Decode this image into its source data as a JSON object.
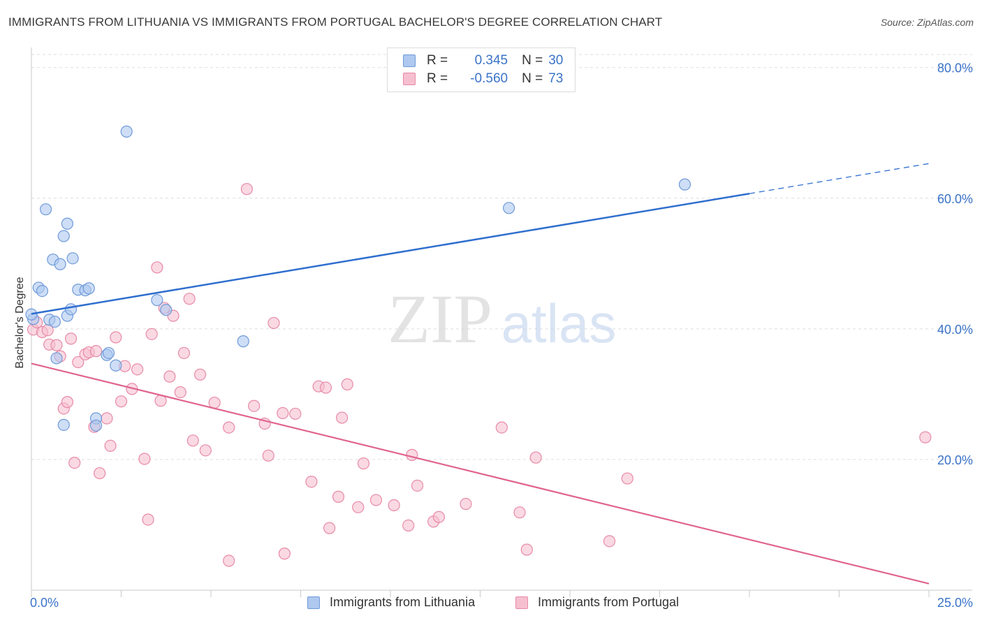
{
  "title": "IMMIGRANTS FROM LITHUANIA VS IMMIGRANTS FROM PORTUGAL BACHELOR'S DEGREE CORRELATION CHART",
  "source": "Source: ZipAtlas.com",
  "watermark": {
    "zip": "ZIP",
    "atlas": "atlas"
  },
  "legend": {
    "rows": [
      {
        "r_label": "R =",
        "r_value": "0.345",
        "n_label": "N =",
        "n_value": "30"
      },
      {
        "r_label": "R =",
        "r_value": "-0.560",
        "n_label": "N =",
        "n_value": "73"
      }
    ]
  },
  "colors": {
    "lithuania_fill": "#aec8f0",
    "lithuania_stroke": "#6f9ad8",
    "lithuania_line": "#2f6fcf",
    "portugal_fill": "#f6bfd0",
    "portugal_stroke": "#e88aa8",
    "portugal_line": "#e0648f",
    "tick_label": "#3a73c8",
    "grid": "#dddddd"
  },
  "chart_data": {
    "type": "scatter",
    "title": "IMMIGRANTS FROM LITHUANIA VS IMMIGRANTS FROM PORTUGAL BACHELOR'S DEGREE CORRELATION CHART",
    "xlabel": "",
    "ylabel": "Bachelor's Degree",
    "xlim": [
      0,
      25
    ],
    "ylim": [
      0,
      82
    ],
    "x_tick_labels": [
      "0.0%",
      "25.0%"
    ],
    "y_ticks": [
      20,
      40,
      60,
      80
    ],
    "y_tick_labels": [
      "20.0%",
      "40.0%",
      "60.0%",
      "80.0%"
    ],
    "grid": true,
    "legend_position": "bottom",
    "series": [
      {
        "name": "Immigrants from Lithuania",
        "trend": {
          "x0": 0,
          "y0": 42.3,
          "x1": 20,
          "y1": 60.7,
          "dashed_to_x": 25,
          "dashed_to_y": 65.3
        },
        "points": [
          [
            0.05,
            41.5
          ],
          [
            0.2,
            46.3
          ],
          [
            0.3,
            45.8
          ],
          [
            0.4,
            58.3
          ],
          [
            0.5,
            41.4
          ],
          [
            0.6,
            50.6
          ],
          [
            0.65,
            41.1
          ],
          [
            0.7,
            35.5
          ],
          [
            0.8,
            49.9
          ],
          [
            0.9,
            25.3
          ],
          [
            0.9,
            54.2
          ],
          [
            1.0,
            42.0
          ],
          [
            1.0,
            56.1
          ],
          [
            1.1,
            43.0
          ],
          [
            1.15,
            50.8
          ],
          [
            1.3,
            46.0
          ],
          [
            1.5,
            45.9
          ],
          [
            1.6,
            46.2
          ],
          [
            1.8,
            26.3
          ],
          [
            1.8,
            25.2
          ],
          [
            2.1,
            36.0
          ],
          [
            2.15,
            36.3
          ],
          [
            2.35,
            34.4
          ],
          [
            2.65,
            70.2
          ],
          [
            3.5,
            44.4
          ],
          [
            3.75,
            42.9
          ],
          [
            5.9,
            38.1
          ],
          [
            13.3,
            58.5
          ],
          [
            18.2,
            62.1
          ],
          [
            0.0,
            42.2
          ]
        ]
      },
      {
        "name": "Immigrants from Portugal",
        "trend": {
          "x0": 0,
          "y0": 34.7,
          "x1": 25,
          "y1": 1.0
        },
        "points": [
          [
            0.05,
            39.9
          ],
          [
            0.15,
            41.0
          ],
          [
            0.3,
            39.5
          ],
          [
            0.45,
            39.8
          ],
          [
            0.5,
            37.6
          ],
          [
            0.7,
            37.5
          ],
          [
            0.8,
            35.8
          ],
          [
            0.9,
            27.8
          ],
          [
            1.0,
            28.8
          ],
          [
            1.1,
            38.5
          ],
          [
            1.2,
            19.5
          ],
          [
            1.3,
            34.9
          ],
          [
            1.5,
            36.1
          ],
          [
            1.6,
            36.4
          ],
          [
            1.75,
            25.0
          ],
          [
            1.8,
            36.6
          ],
          [
            1.9,
            17.9
          ],
          [
            2.1,
            26.3
          ],
          [
            2.2,
            22.1
          ],
          [
            2.35,
            38.7
          ],
          [
            2.5,
            28.9
          ],
          [
            2.6,
            34.3
          ],
          [
            2.8,
            30.8
          ],
          [
            2.95,
            33.8
          ],
          [
            3.15,
            20.1
          ],
          [
            3.25,
            10.8
          ],
          [
            3.35,
            39.2
          ],
          [
            3.5,
            49.4
          ],
          [
            3.6,
            29.0
          ],
          [
            3.7,
            43.2
          ],
          [
            3.85,
            32.7
          ],
          [
            3.95,
            42.0
          ],
          [
            4.15,
            30.3
          ],
          [
            4.25,
            36.3
          ],
          [
            4.4,
            44.6
          ],
          [
            4.5,
            22.9
          ],
          [
            4.7,
            33.0
          ],
          [
            4.85,
            21.4
          ],
          [
            5.1,
            28.7
          ],
          [
            5.5,
            24.9
          ],
          [
            5.5,
            4.5
          ],
          [
            6.0,
            61.4
          ],
          [
            6.2,
            28.2
          ],
          [
            6.5,
            25.5
          ],
          [
            6.6,
            20.6
          ],
          [
            6.75,
            40.9
          ],
          [
            7.0,
            27.1
          ],
          [
            7.05,
            5.6
          ],
          [
            7.35,
            27.0
          ],
          [
            7.8,
            16.6
          ],
          [
            8.0,
            31.2
          ],
          [
            8.2,
            31.0
          ],
          [
            8.3,
            9.5
          ],
          [
            8.55,
            14.3
          ],
          [
            8.65,
            26.4
          ],
          [
            8.8,
            31.5
          ],
          [
            9.1,
            12.7
          ],
          [
            9.25,
            19.4
          ],
          [
            9.6,
            13.8
          ],
          [
            10.1,
            13.0
          ],
          [
            10.5,
            9.9
          ],
          [
            10.6,
            20.7
          ],
          [
            10.75,
            16.0
          ],
          [
            11.2,
            10.5
          ],
          [
            11.35,
            11.2
          ],
          [
            12.1,
            13.2
          ],
          [
            13.1,
            24.9
          ],
          [
            13.6,
            11.9
          ],
          [
            13.8,
            6.2
          ],
          [
            14.05,
            20.3
          ],
          [
            16.1,
            7.5
          ],
          [
            16.6,
            17.1
          ],
          [
            24.9,
            23.4
          ]
        ]
      }
    ]
  }
}
